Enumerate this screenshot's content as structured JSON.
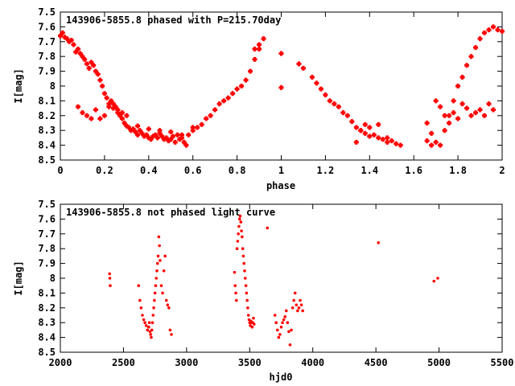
{
  "colors": {
    "points": "#ff0000",
    "axes": "#000000",
    "background": "#ffffff"
  },
  "chart_data": [
    {
      "type": "scatter",
      "title": "143906-5855.8 phased with P=215.70day",
      "xlabel": "phase",
      "ylabel": "I[mag]",
      "xlim": [
        0,
        2
      ],
      "ylim": [
        7.5,
        8.5
      ],
      "y_inverted": true,
      "xticks": [
        "0",
        "0.2",
        "0.4",
        "0.6",
        "0.8",
        "1",
        "1.2",
        "1.4",
        "1.6",
        "1.8",
        "2"
      ],
      "yticks": [
        "7.5",
        "7.6",
        "7.7",
        "7.8",
        "7.9",
        "8",
        "8.1",
        "8.2",
        "8.3",
        "8.4",
        "8.5"
      ],
      "marker": "filled-plus",
      "x": [
        0.0,
        0.01,
        0.02,
        0.03,
        0.04,
        0.05,
        0.06,
        0.07,
        0.08,
        0.09,
        0.1,
        0.11,
        0.12,
        0.13,
        0.14,
        0.15,
        0.16,
        0.17,
        0.18,
        0.19,
        0.2,
        0.21,
        0.22,
        0.23,
        0.24,
        0.25,
        0.26,
        0.27,
        0.28,
        0.29,
        0.3,
        0.31,
        0.32,
        0.33,
        0.34,
        0.35,
        0.36,
        0.37,
        0.38,
        0.39,
        0.4,
        0.41,
        0.42,
        0.43,
        0.44,
        0.45,
        0.46,
        0.47,
        0.48,
        0.49,
        0.5,
        0.51,
        0.52,
        0.53,
        0.54,
        0.55,
        0.56,
        0.57,
        0.58,
        0.6,
        0.62,
        0.64,
        0.66,
        0.68,
        0.7,
        0.72,
        0.74,
        0.76,
        0.78,
        0.8,
        0.82,
        0.84,
        0.86,
        0.88,
        0.9,
        0.92,
        1.0,
        1.08,
        1.1,
        1.14,
        1.16,
        1.18,
        1.2,
        1.22,
        1.24,
        1.26,
        1.28,
        1.3,
        1.32,
        1.34,
        1.36,
        1.38,
        1.4,
        1.42,
        1.44,
        1.46,
        1.48,
        1.5,
        1.52,
        1.54,
        1.66,
        1.68,
        1.7,
        1.72,
        1.74,
        1.76,
        1.78,
        1.8,
        1.82,
        1.84,
        1.86,
        1.88,
        1.9,
        1.92,
        1.94,
        1.96,
        1.98,
        2.0,
        0.08,
        0.1,
        0.12,
        0.14,
        0.16,
        0.18,
        0.2,
        0.22,
        0.24,
        0.26,
        0.28,
        0.3,
        0.35,
        0.4,
        0.45,
        0.5,
        0.55,
        0.6,
        1.66,
        1.68,
        1.7,
        1.72,
        1.74,
        1.76,
        1.78,
        1.8,
        1.82,
        1.84,
        1.86,
        1.88,
        1.9,
        1.92,
        1.94,
        1.96,
        0.88,
        0.9,
        1.0,
        1.34,
        1.36,
        1.38,
        1.4,
        1.44,
        1.48
      ],
      "y": [
        7.66,
        7.64,
        7.67,
        7.68,
        7.7,
        7.69,
        7.72,
        7.77,
        7.75,
        7.78,
        7.8,
        7.82,
        7.85,
        7.88,
        7.84,
        7.86,
        7.9,
        7.92,
        7.96,
        8.0,
        8.05,
        8.08,
        8.12,
        8.1,
        8.15,
        8.14,
        8.18,
        8.2,
        8.22,
        8.25,
        8.27,
        8.28,
        8.3,
        8.29,
        8.31,
        8.33,
        8.3,
        8.32,
        8.34,
        8.33,
        8.35,
        8.36,
        8.34,
        8.33,
        8.35,
        8.32,
        8.34,
        8.36,
        8.35,
        8.37,
        8.36,
        8.34,
        8.38,
        8.33,
        8.36,
        8.35,
        8.38,
        8.4,
        8.33,
        8.3,
        8.28,
        8.26,
        8.22,
        8.2,
        8.16,
        8.12,
        8.1,
        8.08,
        8.05,
        8.02,
        8.0,
        7.96,
        7.9,
        7.82,
        7.75,
        7.68,
        7.78,
        7.85,
        7.88,
        7.94,
        7.98,
        8.02,
        8.06,
        8.1,
        8.12,
        8.14,
        8.18,
        8.2,
        8.24,
        8.28,
        8.3,
        8.32,
        8.34,
        8.33,
        8.35,
        8.36,
        8.38,
        8.37,
        8.39,
        8.4,
        8.25,
        8.32,
        8.38,
        8.4,
        8.3,
        8.2,
        8.1,
        8.0,
        7.94,
        7.86,
        7.8,
        7.74,
        7.68,
        7.64,
        7.62,
        7.6,
        7.62,
        7.63,
        8.14,
        8.18,
        8.2,
        8.22,
        8.16,
        8.22,
        8.2,
        8.14,
        8.12,
        8.16,
        8.18,
        8.2,
        8.27,
        8.29,
        8.3,
        8.31,
        8.33,
        8.28,
        8.37,
        8.4,
        8.1,
        8.14,
        8.2,
        8.25,
        8.18,
        8.22,
        8.12,
        8.15,
        8.2,
        8.18,
        8.16,
        8.2,
        8.12,
        8.16,
        7.75,
        7.72,
        8.01,
        8.38,
        8.3,
        8.26,
        8.28,
        8.26,
        8.35
      ]
    },
    {
      "type": "scatter",
      "title": "143906-5855.8 not phased light curve",
      "xlabel": "hjd0",
      "ylabel": "I[mag]",
      "xlim": [
        2000,
        5500
      ],
      "ylim": [
        7.5,
        8.5
      ],
      "y_inverted": true,
      "xticks": [
        "2000",
        "2500",
        "3000",
        "3500",
        "4000",
        "4500",
        "5000",
        "5500"
      ],
      "yticks": [
        "7.5",
        "7.6",
        "7.7",
        "7.8",
        "7.9",
        "8",
        "8.1",
        "8.2",
        "8.3",
        "8.4",
        "8.5"
      ],
      "marker": "dot",
      "x": [
        2390,
        2392,
        2395,
        2620,
        2630,
        2640,
        2650,
        2660,
        2670,
        2680,
        2690,
        2700,
        2705,
        2710,
        2715,
        2720,
        2725,
        2730,
        2735,
        2740,
        2745,
        2750,
        2755,
        2760,
        2765,
        2770,
        2775,
        2780,
        2785,
        2790,
        2800,
        2810,
        2820,
        2830,
        2840,
        2850,
        2860,
        2870,
        2880,
        3380,
        3385,
        3390,
        3395,
        3400,
        3405,
        3410,
        3415,
        3420,
        3425,
        3430,
        3435,
        3440,
        3445,
        3450,
        3455,
        3460,
        3465,
        3470,
        3475,
        3480,
        3485,
        3490,
        3495,
        3500,
        3505,
        3510,
        3515,
        3520,
        3525,
        3530,
        3535,
        3640,
        3700,
        3710,
        3720,
        3730,
        3740,
        3750,
        3760,
        3770,
        3780,
        3790,
        3800,
        3810,
        3820,
        3830,
        3840,
        3850,
        3860,
        3870,
        3880,
        3890,
        3900,
        3910,
        3920,
        4520,
        4960,
        4990
      ],
      "y": [
        7.97,
        8.0,
        8.05,
        8.05,
        8.15,
        8.2,
        8.25,
        8.28,
        8.3,
        8.32,
        8.35,
        8.33,
        8.3,
        8.36,
        8.38,
        8.4,
        8.35,
        8.3,
        8.25,
        8.2,
        8.15,
        8.1,
        8.05,
        8.0,
        7.95,
        7.9,
        7.85,
        7.72,
        7.78,
        7.88,
        8.05,
        8.1,
        7.95,
        7.85,
        8.15,
        8.18,
        8.2,
        8.35,
        8.38,
        7.96,
        8.05,
        8.1,
        8.15,
        7.8,
        7.75,
        7.7,
        7.65,
        7.6,
        7.58,
        7.62,
        7.68,
        7.72,
        7.8,
        7.85,
        7.9,
        7.95,
        8.0,
        8.05,
        8.1,
        8.15,
        8.2,
        8.25,
        8.28,
        8.3,
        8.32,
        8.29,
        8.3,
        8.33,
        8.3,
        8.27,
        8.31,
        7.66,
        8.25,
        8.3,
        8.35,
        8.4,
        8.38,
        8.33,
        8.3,
        8.28,
        8.26,
        8.22,
        8.3,
        8.36,
        8.45,
        8.35,
        8.2,
        8.15,
        8.1,
        8.18,
        8.22,
        8.2,
        8.15,
        8.18,
        8.22,
        7.76,
        8.02,
        8.0
      ]
    }
  ]
}
